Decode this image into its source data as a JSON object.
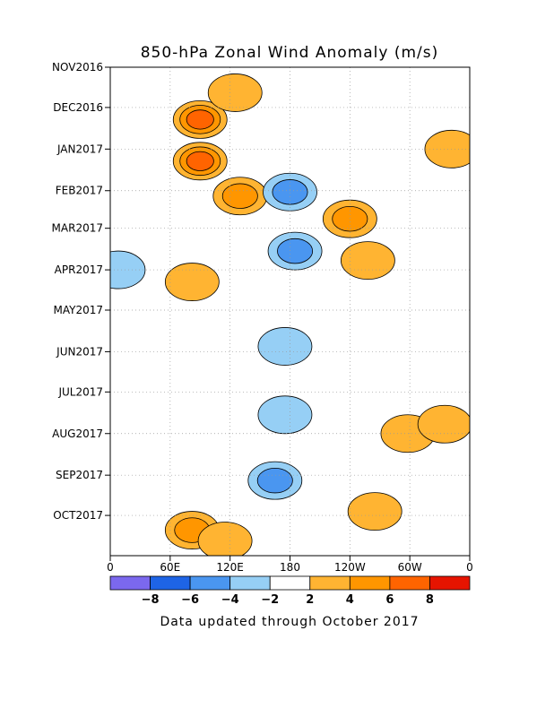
{
  "chart_data": {
    "type": "heatmap",
    "title": "850-hPa Zonal Wind Anomaly (m/s)",
    "xlabel": "",
    "ylabel": "",
    "x_ticks": [
      "0",
      "60E",
      "120E",
      "180",
      "120W",
      "60W",
      "0"
    ],
    "x_range_deg": [
      0,
      360
    ],
    "y_ticks": [
      "NOV2016",
      "DEC2016",
      "JAN2017",
      "FEB2017",
      "MAR2017",
      "APR2017",
      "MAY2017",
      "JUN2017",
      "JUL2017",
      "AUG2017",
      "SEP2017",
      "OCT2017"
    ],
    "y_range": [
      "2016-11-01",
      "2017-10-31"
    ],
    "grid": true,
    "contour_levels": [
      -8,
      -6,
      -4,
      -2,
      2,
      4,
      6,
      8
    ],
    "colorbar": {
      "tick_labels": [
        "-8",
        "-6",
        "-4",
        "-2",
        "2",
        "4",
        "6",
        "8"
      ],
      "colors": [
        "#7b68ee",
        "#1e64e6",
        "#4a96f0",
        "#96cff5",
        "#ffffff",
        "#ffb432",
        "#ff9600",
        "#ff6400",
        "#e61400"
      ]
    },
    "anomaly_regions": [
      {
        "lon": 90,
        "date": "2016-12-10",
        "sign": "positive",
        "peak": 6
      },
      {
        "lon": 90,
        "date": "2017-01-10",
        "sign": "positive",
        "peak": 6
      },
      {
        "lon": 125,
        "date": "2016-11-20",
        "sign": "positive",
        "peak": 2
      },
      {
        "lon": 130,
        "date": "2017-02-05",
        "sign": "positive",
        "peak": 4
      },
      {
        "lon": 82,
        "date": "2017-04-10",
        "sign": "positive",
        "peak": 2
      },
      {
        "lon": 82,
        "date": "2017-10-12",
        "sign": "positive",
        "peak": 4
      },
      {
        "lon": 115,
        "date": "2017-10-20",
        "sign": "positive",
        "peak": 2
      },
      {
        "lon": 185,
        "date": "2017-03-18",
        "sign": "negative",
        "peak": -4
      },
      {
        "lon": 180,
        "date": "2017-02-02",
        "sign": "negative",
        "peak": -4
      },
      {
        "lon": 175,
        "date": "2017-05-28",
        "sign": "negative",
        "peak": -2
      },
      {
        "lon": 175,
        "date": "2017-07-18",
        "sign": "negative",
        "peak": -2
      },
      {
        "lon": 165,
        "date": "2017-09-05",
        "sign": "negative",
        "peak": -4
      },
      {
        "lon": 240,
        "date": "2017-02-22",
        "sign": "positive",
        "peak": 4
      },
      {
        "lon": 258,
        "date": "2017-03-25",
        "sign": "positive",
        "peak": 2
      },
      {
        "lon": 265,
        "date": "2017-09-28",
        "sign": "positive",
        "peak": 2
      },
      {
        "lon": 298,
        "date": "2017-08-01",
        "sign": "positive",
        "peak": 2
      },
      {
        "lon": 342,
        "date": "2017-01-01",
        "sign": "positive",
        "peak": 2
      },
      {
        "lon": 335,
        "date": "2017-07-25",
        "sign": "positive",
        "peak": 2
      },
      {
        "lon": 8,
        "date": "2017-04-01",
        "sign": "negative",
        "peak": -2
      }
    ]
  },
  "colors": {
    "negative_light": "#96cff5",
    "negative_medium": "#4a96f0",
    "positive_light": "#ffb432",
    "positive_medium": "#ff9600",
    "positive_strong": "#ff6400"
  },
  "footnote": "Data updated through October 2017"
}
